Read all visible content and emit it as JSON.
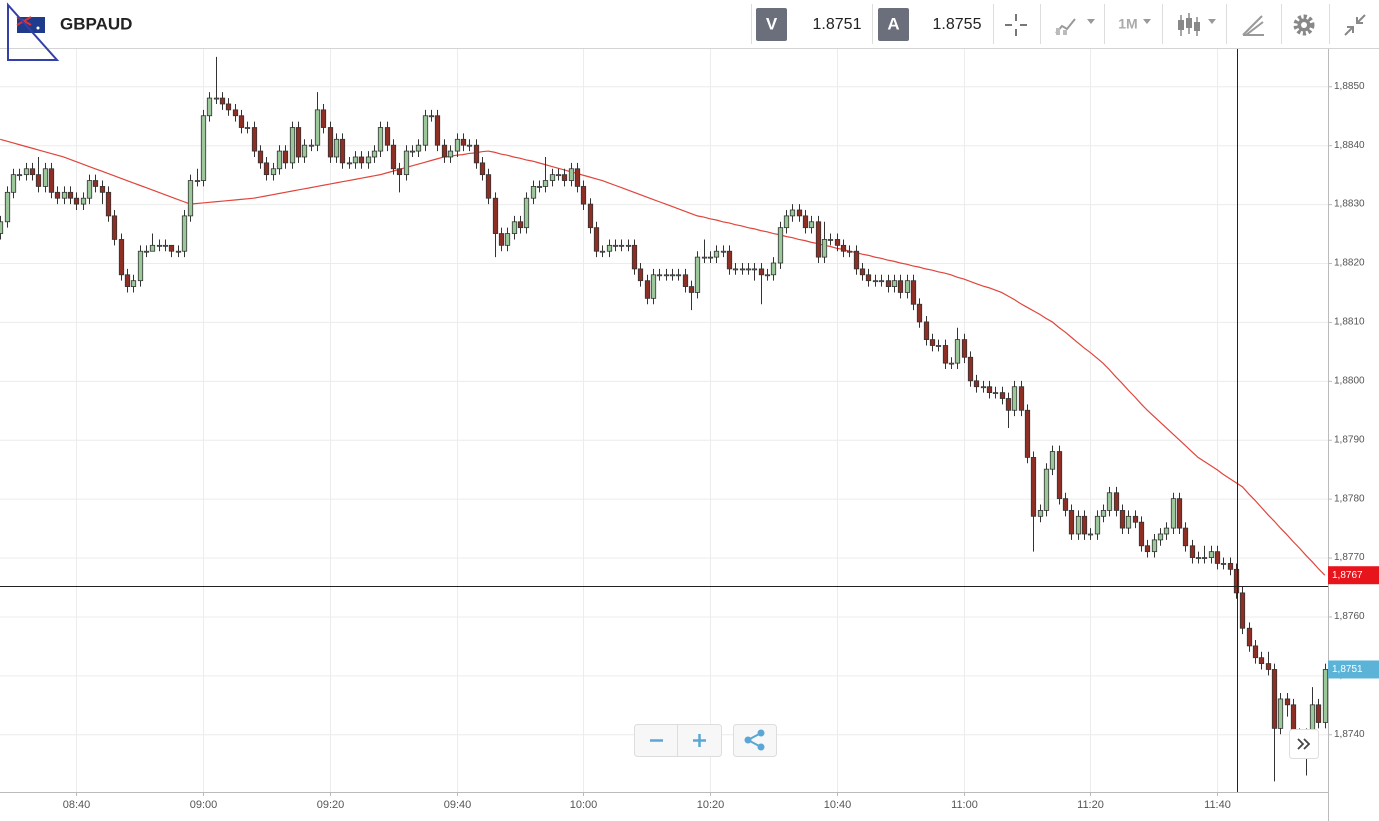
{
  "toolbar": {
    "symbol": "GBPAUD",
    "bid_label": "V",
    "bid": "1.8751",
    "ask_label": "A",
    "ask": "1.8755",
    "timeframe": "1M"
  },
  "chart_data": {
    "type": "candlestick",
    "categories": [
      null,
      null,
      null,
      null,
      null,
      null,
      null,
      null,
      null,
      null,
      null,
      null,
      "08:40",
      null,
      null,
      null,
      null,
      null,
      null,
      null,
      null,
      null,
      null,
      null,
      null,
      null,
      null,
      null,
      null,
      null,
      null,
      null,
      "09:00",
      null,
      null,
      null,
      null,
      null,
      null,
      null,
      null,
      null,
      null,
      null,
      null,
      null,
      null,
      null,
      null,
      null,
      null,
      null,
      "09:20",
      null,
      null,
      null,
      null,
      null,
      null,
      null,
      null,
      null,
      null,
      null,
      null,
      null,
      null,
      null,
      null,
      null,
      null,
      null,
      "09:40",
      null,
      null,
      null,
      null,
      null,
      null,
      null,
      null,
      null,
      null,
      null,
      null,
      null,
      null,
      null,
      null,
      null,
      null,
      null,
      "10:00",
      null,
      null,
      null,
      null,
      null,
      null,
      null,
      null,
      null,
      null,
      null,
      null,
      null,
      null,
      null,
      null,
      null,
      null,
      null,
      "10:20",
      null,
      null,
      null,
      null,
      null,
      null,
      null,
      null,
      null,
      null,
      null,
      null,
      null,
      null,
      null,
      null,
      null,
      null,
      null,
      "10:40",
      null,
      null,
      null,
      null,
      null,
      null,
      null,
      null,
      null,
      null,
      null,
      null,
      null,
      null,
      null,
      null,
      null,
      null,
      null,
      "11:00",
      null,
      null,
      null,
      null,
      null,
      null,
      null,
      null,
      null,
      null,
      null,
      null,
      null,
      null,
      null,
      null,
      null,
      null,
      null,
      "11:20",
      null,
      null,
      null,
      null,
      null,
      null,
      null,
      null,
      null,
      null,
      null,
      null,
      null,
      null,
      null,
      null,
      null,
      null,
      null,
      "11:40",
      null,
      null,
      null,
      null,
      null,
      null,
      null,
      null,
      null,
      null,
      null,
      null,
      null,
      null,
      null,
      null,
      null
    ],
    "open": [
      1.8825,
      1.8827,
      1.8832,
      1.8835,
      1.8835,
      1.8836,
      1.8835,
      1.8833,
      1.8836,
      1.8832,
      1.8831,
      1.8832,
      1.8831,
      1.883,
      1.8831,
      1.8834,
      1.8833,
      1.8832,
      1.8828,
      1.8824,
      1.8818,
      1.8816,
      1.8817,
      1.8822,
      1.8822,
      1.8823,
      1.8823,
      1.8823,
      1.8822,
      1.8822,
      1.8828,
      1.8834,
      1.8834,
      1.8845,
      1.8848,
      1.8848,
      1.8847,
      1.8846,
      1.8845,
      1.8843,
      1.8843,
      1.8839,
      1.8837,
      1.8835,
      1.8836,
      1.8839,
      1.8837,
      1.8843,
      1.8838,
      1.884,
      1.884,
      1.8846,
      1.8843,
      1.8838,
      1.8841,
      1.8837,
      1.8837,
      1.8838,
      1.8837,
      1.8838,
      1.8839,
      1.8843,
      1.884,
      1.8836,
      1.8835,
      1.8839,
      1.8839,
      1.884,
      1.8845,
      1.8845,
      1.884,
      1.8838,
      1.8839,
      1.8841,
      1.884,
      1.884,
      1.8837,
      1.8835,
      1.8831,
      1.8825,
      1.8823,
      1.8825,
      1.8827,
      1.8826,
      1.8831,
      1.8833,
      1.8833,
      1.8834,
      1.8835,
      1.8835,
      1.8834,
      1.8836,
      1.8833,
      1.883,
      1.8826,
      1.8822,
      1.8822,
      1.8823,
      1.8823,
      1.8823,
      1.8823,
      1.8819,
      1.8817,
      1.8814,
      1.8818,
      1.8818,
      1.8818,
      1.8818,
      1.8818,
      1.8816,
      1.8815,
      1.8821,
      1.8821,
      1.8821,
      1.8822,
      1.8822,
      1.8819,
      1.8819,
      1.8819,
      1.8819,
      1.8819,
      1.8818,
      1.8818,
      1.882,
      1.8826,
      1.8828,
      1.8829,
      1.8828,
      1.8826,
      1.8827,
      1.8821,
      1.8824,
      1.8824,
      1.8823,
      1.8822,
      1.8822,
      1.8819,
      1.8818,
      1.8817,
      1.8817,
      1.8817,
      1.8816,
      1.8817,
      1.8815,
      1.8817,
      1.8813,
      1.881,
      1.8807,
      1.8806,
      1.8806,
      1.8803,
      1.8803,
      1.8807,
      1.8804,
      1.88,
      1.8799,
      1.8799,
      1.8798,
      1.8798,
      1.8797,
      1.8795,
      1.8799,
      1.8795,
      1.8787,
      1.8777,
      1.8778,
      1.8785,
      1.8788,
      1.878,
      1.8778,
      1.8774,
      1.8777,
      1.8774,
      1.8774,
      1.8777,
      1.8778,
      1.8781,
      1.8778,
      1.8775,
      1.8777,
      1.8776,
      1.8772,
      1.8771,
      1.8773,
      1.8774,
      1.8775,
      1.878,
      1.8775,
      1.8772,
      1.877,
      1.877,
      1.877,
      1.8771,
      1.8769,
      1.8769,
      1.8768,
      1.8764,
      1.8758,
      1.8755,
      1.8753,
      1.8752,
      1.8751,
      1.8741,
      1.8746,
      1.8745,
      1.874,
      1.874,
      1.8739,
      1.8745,
      1.8742
    ],
    "high": [
      1.8828,
      1.8833,
      1.8836,
      1.8836,
      1.8837,
      1.8837,
      1.8838,
      1.8837,
      1.8837,
      1.8833,
      1.8833,
      1.8833,
      1.8832,
      1.8832,
      1.8835,
      1.8835,
      1.8834,
      1.8833,
      1.8829,
      1.8825,
      1.8819,
      1.8818,
      1.8823,
      1.8823,
      1.8825,
      1.8824,
      1.8824,
      1.8823,
      1.8823,
      1.8829,
      1.8835,
      1.8836,
      1.8846,
      1.8849,
      1.8855,
      1.8849,
      1.8848,
      1.8847,
      1.8846,
      1.8844,
      1.8844,
      1.884,
      1.8838,
      1.8837,
      1.884,
      1.884,
      1.8844,
      1.8844,
      1.8841,
      1.8841,
      1.8849,
      1.8847,
      1.8844,
      1.8842,
      1.8842,
      1.8838,
      1.8839,
      1.8839,
      1.8839,
      1.884,
      1.8844,
      1.8844,
      1.8841,
      1.8837,
      1.884,
      1.884,
      1.8841,
      1.8846,
      1.8846,
      1.8846,
      1.8841,
      1.884,
      1.8842,
      1.8842,
      1.8841,
      1.8841,
      1.8838,
      1.8836,
      1.8832,
      1.8826,
      1.8826,
      1.8828,
      1.8828,
      1.8832,
      1.8834,
      1.8834,
      1.8838,
      1.8836,
      1.8836,
      1.8836,
      1.8837,
      1.8837,
      1.8834,
      1.8831,
      1.8827,
      1.8823,
      1.8824,
      1.8824,
      1.8824,
      1.8824,
      1.8824,
      1.882,
      1.8818,
      1.8819,
      1.8819,
      1.8819,
      1.8819,
      1.8819,
      1.8819,
      1.8817,
      1.8822,
      1.8824,
      1.8822,
      1.8823,
      1.8823,
      1.8823,
      1.882,
      1.882,
      1.882,
      1.882,
      1.882,
      1.8819,
      1.8821,
      1.8827,
      1.8829,
      1.883,
      1.883,
      1.8829,
      1.8828,
      1.8828,
      1.8827,
      1.8825,
      1.8825,
      1.8824,
      1.8823,
      1.8823,
      1.882,
      1.8819,
      1.8818,
      1.8818,
      1.8818,
      1.8818,
      1.8818,
      1.8818,
      1.8818,
      1.8814,
      1.8811,
      1.8808,
      1.8807,
      1.8807,
      1.8804,
      1.8809,
      1.8808,
      1.8805,
      1.8801,
      1.88,
      1.88,
      1.8799,
      1.8799,
      1.8798,
      1.88,
      1.88,
      1.8796,
      1.8788,
      1.8779,
      1.8786,
      1.8789,
      1.8789,
      1.8781,
      1.8779,
      1.8778,
      1.8778,
      1.8775,
      1.8778,
      1.8779,
      1.8782,
      1.8782,
      1.8779,
      1.8778,
      1.8778,
      1.8777,
      1.8773,
      1.8774,
      1.8775,
      1.8776,
      1.8781,
      1.8781,
      1.8776,
      1.8773,
      1.8771,
      1.8772,
      1.8772,
      1.8772,
      1.877,
      1.877,
      1.8769,
      1.8765,
      1.8759,
      1.8756,
      1.8754,
      1.8754,
      1.8752,
      1.8747,
      1.8747,
      1.8746,
      1.8741,
      1.8741,
      1.8748,
      1.8746,
      1.8752
    ],
    "low": [
      1.8824,
      1.8826,
      1.8831,
      1.8834,
      1.8834,
      1.8834,
      1.8832,
      1.8832,
      1.8831,
      1.883,
      1.883,
      1.883,
      1.8829,
      1.8829,
      1.883,
      1.8832,
      1.883,
      1.8827,
      1.8823,
      1.8817,
      1.8815,
      1.8815,
      1.8816,
      1.8821,
      1.8822,
      1.8822,
      1.8822,
      1.8821,
      1.8821,
      1.8821,
      1.8827,
      1.8833,
      1.8833,
      1.8844,
      1.8847,
      1.8846,
      1.8845,
      1.8844,
      1.8842,
      1.8842,
      1.8838,
      1.8836,
      1.8834,
      1.8834,
      1.8835,
      1.8836,
      1.8836,
      1.8837,
      1.8837,
      1.8839,
      1.8839,
      1.8842,
      1.8837,
      1.8837,
      1.8836,
      1.8836,
      1.8836,
      1.8836,
      1.8836,
      1.8837,
      1.8838,
      1.8839,
      1.8835,
      1.8832,
      1.8834,
      1.8838,
      1.8838,
      1.8839,
      1.8844,
      1.8839,
      1.8837,
      1.8837,
      1.8838,
      1.8839,
      1.8839,
      1.8836,
      1.8834,
      1.883,
      1.8821,
      1.8822,
      1.8822,
      1.8824,
      1.8825,
      1.8825,
      1.883,
      1.8832,
      1.8832,
      1.8833,
      1.8834,
      1.8833,
      1.8833,
      1.8832,
      1.8829,
      1.8825,
      1.8821,
      1.8821,
      1.8821,
      1.8822,
      1.8822,
      1.8822,
      1.8818,
      1.8816,
      1.8813,
      1.8813,
      1.8817,
      1.8817,
      1.8817,
      1.8817,
      1.8815,
      1.8812,
      1.8814,
      1.882,
      1.882,
      1.882,
      1.8821,
      1.8818,
      1.8818,
      1.8818,
      1.8818,
      1.8817,
      1.8813,
      1.8817,
      1.8817,
      1.8819,
      1.8825,
      1.8827,
      1.8827,
      1.8825,
      1.8825,
      1.882,
      1.882,
      1.8823,
      1.8822,
      1.8821,
      1.8821,
      1.8818,
      1.8817,
      1.8816,
      1.8816,
      1.8816,
      1.8815,
      1.8815,
      1.8814,
      1.8814,
      1.8812,
      1.8809,
      1.8806,
      1.8805,
      1.8805,
      1.8802,
      1.8802,
      1.8802,
      1.8803,
      1.8799,
      1.8798,
      1.8798,
      1.8797,
      1.8797,
      1.8796,
      1.8792,
      1.8794,
      1.8794,
      1.8786,
      1.8771,
      1.8776,
      1.8777,
      1.8784,
      1.8779,
      1.8777,
      1.8773,
      1.8773,
      1.8773,
      1.8773,
      1.8773,
      1.8776,
      1.8777,
      1.8777,
      1.8774,
      1.8774,
      1.8775,
      1.8771,
      1.877,
      1.877,
      1.8772,
      1.8773,
      1.8774,
      1.8774,
      1.8771,
      1.8769,
      1.8769,
      1.8769,
      1.8769,
      1.8768,
      1.8768,
      1.8767,
      1.8763,
      1.8757,
      1.8754,
      1.8752,
      1.8751,
      1.875,
      1.8732,
      1.874,
      1.8743,
      1.8739,
      1.8739,
      1.8733,
      1.8738,
      1.8741,
      1.8741
    ],
    "close": [
      1.8827,
      1.8832,
      1.8835,
      1.8835,
      1.8836,
      1.8835,
      1.8833,
      1.8836,
      1.8832,
      1.8831,
      1.8832,
      1.8831,
      1.883,
      1.8831,
      1.8834,
      1.8833,
      1.8832,
      1.8828,
      1.8824,
      1.8818,
      1.8816,
      1.8817,
      1.8822,
      1.8822,
      1.8823,
      1.8823,
      1.8823,
      1.8822,
      1.8822,
      1.8828,
      1.8834,
      1.8834,
      1.8845,
      1.8848,
      1.8848,
      1.8847,
      1.8846,
      1.8845,
      1.8843,
      1.8843,
      1.8839,
      1.8837,
      1.8835,
      1.8836,
      1.8839,
      1.8837,
      1.8843,
      1.8838,
      1.884,
      1.884,
      1.8846,
      1.8843,
      1.8838,
      1.8841,
      1.8837,
      1.8837,
      1.8838,
      1.8837,
      1.8838,
      1.8839,
      1.8843,
      1.884,
      1.8836,
      1.8835,
      1.8839,
      1.8839,
      1.884,
      1.8845,
      1.8845,
      1.884,
      1.8838,
      1.8839,
      1.8841,
      1.884,
      1.884,
      1.8837,
      1.8835,
      1.8831,
      1.8825,
      1.8823,
      1.8825,
      1.8827,
      1.8826,
      1.8831,
      1.8833,
      1.8833,
      1.8834,
      1.8835,
      1.8835,
      1.8834,
      1.8836,
      1.8833,
      1.883,
      1.8826,
      1.8822,
      1.8822,
      1.8823,
      1.8823,
      1.8823,
      1.8823,
      1.8819,
      1.8817,
      1.8814,
      1.8818,
      1.8818,
      1.8818,
      1.8818,
      1.8818,
      1.8816,
      1.8815,
      1.8821,
      1.8821,
      1.8821,
      1.8822,
      1.8822,
      1.8819,
      1.8819,
      1.8819,
      1.8819,
      1.8819,
      1.8818,
      1.8818,
      1.882,
      1.8826,
      1.8828,
      1.8829,
      1.8828,
      1.8826,
      1.8827,
      1.8821,
      1.8824,
      1.8824,
      1.8823,
      1.8822,
      1.8822,
      1.8819,
      1.8818,
      1.8817,
      1.8817,
      1.8817,
      1.8816,
      1.8817,
      1.8815,
      1.8817,
      1.8813,
      1.881,
      1.8807,
      1.8806,
      1.8806,
      1.8803,
      1.8803,
      1.8807,
      1.8804,
      1.88,
      1.8799,
      1.8799,
      1.8798,
      1.8798,
      1.8797,
      1.8795,
      1.8799,
      1.8795,
      1.8787,
      1.8777,
      1.8778,
      1.8785,
      1.8788,
      1.878,
      1.8778,
      1.8774,
      1.8777,
      1.8774,
      1.8774,
      1.8777,
      1.8778,
      1.8781,
      1.8778,
      1.8775,
      1.8777,
      1.8776,
      1.8772,
      1.8771,
      1.8773,
      1.8774,
      1.8775,
      1.878,
      1.8775,
      1.8772,
      1.877,
      1.877,
      1.877,
      1.8771,
      1.8769,
      1.8769,
      1.8768,
      1.8764,
      1.8758,
      1.8755,
      1.8753,
      1.8752,
      1.8751,
      1.8741,
      1.8746,
      1.8745,
      1.874,
      1.874,
      1.8739,
      1.8745,
      1.8742,
      1.8751
    ],
    "up_color": "#9cc79a",
    "down_color": "#8e2f25",
    "moving_average": {
      "color": "#e0453c",
      "values": [
        1.8841,
        1.88407,
        1.88404,
        1.88401,
        1.88398,
        1.88395,
        1.88392,
        1.88389,
        1.88386,
        1.88383,
        1.8838,
        1.88376,
        1.88372,
        1.88368,
        1.88364,
        1.8836,
        1.88356,
        1.88352,
        1.88348,
        1.88344,
        1.8834,
        1.88336,
        1.88332,
        1.88328,
        1.88324,
        1.8832,
        1.88316,
        1.88312,
        1.88308,
        1.88304,
        1.883,
        1.88301,
        1.88302,
        1.88303,
        1.88304,
        1.88305,
        1.88306,
        1.88307,
        1.88308,
        1.88309,
        1.8831,
        1.88312,
        1.88314,
        1.88316,
        1.88318,
        1.8832,
        1.88322,
        1.88324,
        1.88326,
        1.88328,
        1.8833,
        1.88332,
        1.88334,
        1.88336,
        1.88338,
        1.8834,
        1.88342,
        1.88344,
        1.88346,
        1.88348,
        1.8835,
        1.88353,
        1.88356,
        1.88359,
        1.88362,
        1.88365,
        1.88368,
        1.88371,
        1.88374,
        1.88377,
        1.8838,
        1.88381,
        1.88383,
        1.88384,
        1.88386,
        1.88387,
        1.88389,
        1.8839,
        1.88388,
        1.88385,
        1.88383,
        1.8838,
        1.88378,
        1.88375,
        1.88373,
        1.8837,
        1.88367,
        1.88364,
        1.88361,
        1.88358,
        1.88355,
        1.88352,
        1.88349,
        1.88346,
        1.88343,
        1.8834,
        1.88336,
        1.88332,
        1.88328,
        1.88324,
        1.8832,
        1.88316,
        1.88312,
        1.88308,
        1.88304,
        1.883,
        1.88296,
        1.88292,
        1.88288,
        1.88284,
        1.8828,
        1.88278,
        1.88275,
        1.88273,
        1.8827,
        1.88268,
        1.88265,
        1.88263,
        1.8826,
        1.88258,
        1.88255,
        1.88253,
        1.8825,
        1.88248,
        1.88245,
        1.88243,
        1.8824,
        1.88238,
        1.88235,
        1.88233,
        1.8823,
        1.88228,
        1.88225,
        1.88223,
        1.8822,
        1.88218,
        1.88215,
        1.88213,
        1.8821,
        1.88208,
        1.88205,
        1.88203,
        1.882,
        1.88198,
        1.88195,
        1.88193,
        1.8819,
        1.88188,
        1.88185,
        1.88183,
        1.8818,
        1.88176,
        1.88173,
        1.88169,
        1.88165,
        1.88161,
        1.88158,
        1.88154,
        1.8815,
        1.88144,
        1.88138,
        1.88131,
        1.88125,
        1.88119,
        1.88113,
        1.88106,
        1.881,
        1.88091,
        1.88083,
        1.88074,
        1.88065,
        1.88056,
        1.88048,
        1.88039,
        1.8803,
        1.88019,
        1.88007,
        1.87996,
        1.87984,
        1.87973,
        1.87961,
        1.8795,
        1.8794,
        1.8793,
        1.8792,
        1.8791,
        1.879,
        1.8789,
        1.8788,
        1.8787,
        1.87863,
        1.87856,
        1.87849,
        1.87841,
        1.87834,
        1.87827,
        1.8782,
        1.87808,
        1.87797,
        1.87785,
        1.87773,
        1.87762,
        1.8775,
        1.87739,
        1.87727,
        1.87716,
        1.87704,
        1.87693,
        1.87681,
        1.8767
      ]
    },
    "ylim": [
      1.87302,
      1.88565
    ],
    "yticks": [
      {
        "value": 1.874,
        "label": "1,8740"
      },
      {
        "value": 1.875,
        "label": "1,8750"
      },
      {
        "value": 1.876,
        "label": "1,8760"
      },
      {
        "value": 1.877,
        "label": "1,8770"
      },
      {
        "value": 1.878,
        "label": "1,8780"
      },
      {
        "value": 1.879,
        "label": "1,8790"
      },
      {
        "value": 1.88,
        "label": "1,8800"
      },
      {
        "value": 1.881,
        "label": "1,8810"
      },
      {
        "value": 1.882,
        "label": "1,8820"
      },
      {
        "value": 1.883,
        "label": "1,8830"
      },
      {
        "value": 1.884,
        "label": "1,8840"
      },
      {
        "value": 1.885,
        "label": "1,8850"
      }
    ],
    "grid": true,
    "price_markers": [
      {
        "value": 1.8767,
        "label": "1,8767",
        "color": "#e8141c"
      },
      {
        "value": 1.8751,
        "label": "1,8751",
        "color": "#5bb3d8"
      }
    ]
  }
}
